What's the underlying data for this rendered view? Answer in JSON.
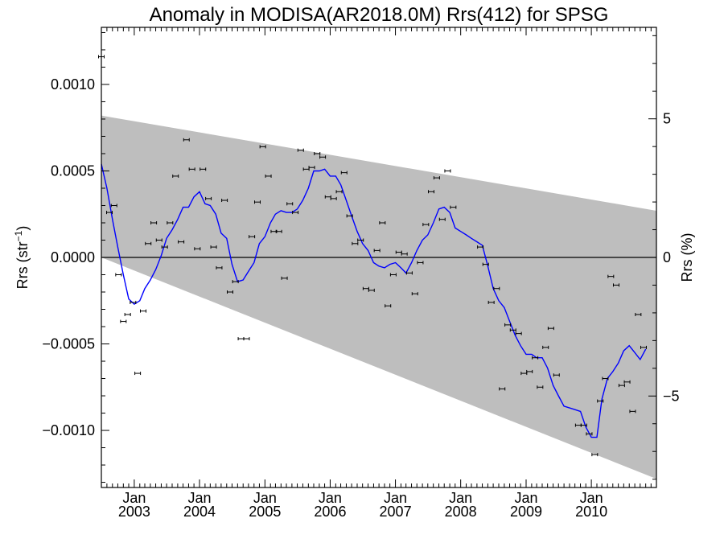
{
  "chart_data": {
    "type": "scatter",
    "title": "Anomaly in MODISA(AR2018.0M) Rrs(412) for SPSG",
    "ylabel_left": "Rrs (str⁻¹)",
    "ylabel_right": "Rrs (%)",
    "x_range": [
      "2002-07-01",
      "2010-12-31"
    ],
    "y_range_left": [
      -0.00133,
      0.00133
    ],
    "y_range_right": [
      -8.3,
      8.3
    ],
    "x_ticks": [
      {
        "date": "2003-01-01",
        "month": "Jan",
        "year": "2003"
      },
      {
        "date": "2004-01-01",
        "month": "Jan",
        "year": "2004"
      },
      {
        "date": "2005-01-01",
        "month": "Jan",
        "year": "2005"
      },
      {
        "date": "2006-01-01",
        "month": "Jan",
        "year": "2006"
      },
      {
        "date": "2007-01-01",
        "month": "Jan",
        "year": "2007"
      },
      {
        "date": "2008-01-01",
        "month": "Jan",
        "year": "2008"
      },
      {
        "date": "2009-01-01",
        "month": "Jan",
        "year": "2009"
      },
      {
        "date": "2010-01-01",
        "month": "Jan",
        "year": "2010"
      }
    ],
    "y_ticks_left": [
      {
        "value": 0.001,
        "label": "0.0010"
      },
      {
        "value": 0.0005,
        "label": "0.0005"
      },
      {
        "value": 0.0,
        "label": "0.0000"
      },
      {
        "value": -0.0005,
        "label": "−0.0005"
      },
      {
        "value": -0.001,
        "label": "−0.0010"
      }
    ],
    "y_ticks_right": [
      {
        "value": 5,
        "label": "5"
      },
      {
        "value": 0,
        "label": "0"
      },
      {
        "value": -5,
        "label": "−5"
      }
    ],
    "band": {
      "color": "#bebebe",
      "upper": [
        {
          "date": "2002-07-01",
          "y": 0.00082
        },
        {
          "date": "2010-12-31",
          "y": 0.00027
        }
      ],
      "lower": [
        {
          "date": "2002-07-01",
          "y": 0.0
        },
        {
          "date": "2010-12-31",
          "y": -0.00128
        }
      ]
    },
    "zero_line": true,
    "line_series": {
      "color": "#0000ff",
      "points": [
        [
          "2002-07-01",
          0.00054
        ],
        [
          "2002-08-01",
          0.0004
        ],
        [
          "2002-09-01",
          0.00022
        ],
        [
          "2002-10-01",
          6e-05
        ],
        [
          "2002-11-01",
          -0.0001
        ],
        [
          "2002-12-01",
          -0.00024
        ],
        [
          "2003-01-01",
          -0.00027
        ],
        [
          "2003-02-01",
          -0.00025
        ],
        [
          "2003-03-01",
          -0.00018
        ],
        [
          "2003-04-01",
          -0.00013
        ],
        [
          "2003-05-01",
          -7e-05
        ],
        [
          "2003-06-01",
          1e-05
        ],
        [
          "2003-07-01",
          0.00011
        ],
        [
          "2003-08-01",
          0.00016
        ],
        [
          "2003-09-01",
          0.00022
        ],
        [
          "2003-10-01",
          0.00029
        ],
        [
          "2003-11-01",
          0.00029
        ],
        [
          "2003-12-01",
          0.00035
        ],
        [
          "2004-01-01",
          0.00038
        ],
        [
          "2004-02-01",
          0.00031
        ],
        [
          "2004-03-01",
          0.0003
        ],
        [
          "2004-04-01",
          0.00025
        ],
        [
          "2004-05-01",
          0.00014
        ],
        [
          "2004-06-01",
          0.00011
        ],
        [
          "2004-07-01",
          -4e-05
        ],
        [
          "2004-08-01",
          -0.00014
        ],
        [
          "2004-09-01",
          -0.00013
        ],
        [
          "2004-10-01",
          -8e-05
        ],
        [
          "2004-11-01",
          -3e-05
        ],
        [
          "2004-12-01",
          8e-05
        ],
        [
          "2005-01-01",
          0.00012
        ],
        [
          "2005-02-01",
          0.0002
        ],
        [
          "2005-03-01",
          0.00025
        ],
        [
          "2005-04-01",
          0.00027
        ],
        [
          "2005-05-01",
          0.00026
        ],
        [
          "2005-06-01",
          0.00026
        ],
        [
          "2005-07-01",
          0.00028
        ],
        [
          "2005-08-01",
          0.00033
        ],
        [
          "2005-09-01",
          0.0004
        ],
        [
          "2005-10-01",
          0.0005
        ],
        [
          "2005-11-01",
          0.0005
        ],
        [
          "2005-12-01",
          0.00051
        ],
        [
          "2006-01-01",
          0.00047
        ],
        [
          "2006-02-01",
          0.00047
        ],
        [
          "2006-03-01",
          0.00042
        ],
        [
          "2006-04-01",
          0.00033
        ],
        [
          "2006-05-01",
          0.00024
        ],
        [
          "2006-06-01",
          0.00015
        ],
        [
          "2006-07-01",
          8e-05
        ],
        [
          "2006-08-01",
          4e-05
        ],
        [
          "2006-09-01",
          -3e-05
        ],
        [
          "2006-10-01",
          -5e-05
        ],
        [
          "2006-11-01",
          -6e-05
        ],
        [
          "2006-12-01",
          -4e-05
        ],
        [
          "2007-01-01",
          -3e-05
        ],
        [
          "2007-02-01",
          -6e-05
        ],
        [
          "2007-03-01",
          -9e-05
        ],
        [
          "2007-04-01",
          -3e-05
        ],
        [
          "2007-05-01",
          4e-05
        ],
        [
          "2007-06-01",
          0.0001
        ],
        [
          "2007-07-01",
          0.00013
        ],
        [
          "2007-08-01",
          0.0002
        ],
        [
          "2007-09-01",
          0.00028
        ],
        [
          "2007-10-01",
          0.00029
        ],
        [
          "2007-11-01",
          0.00026
        ],
        [
          "2007-12-01",
          0.00017
        ],
        [
          "2008-01-01",
          0.00015
        ],
        [
          "2008-02-01",
          0.00013
        ],
        [
          "2008-03-01",
          0.00011
        ],
        [
          "2008-04-01",
          9e-05
        ],
        [
          "2008-05-01",
          7e-05
        ],
        [
          "2008-06-01",
          -5e-05
        ],
        [
          "2008-07-01",
          -0.00018
        ],
        [
          "2008-08-01",
          -0.00025
        ],
        [
          "2008-09-01",
          -0.00029
        ],
        [
          "2008-10-01",
          -0.00037
        ],
        [
          "2008-11-01",
          -0.00045
        ],
        [
          "2008-12-01",
          -0.00051
        ],
        [
          "2009-01-01",
          -0.00056
        ],
        [
          "2009-02-01",
          -0.00056
        ],
        [
          "2009-03-01",
          -0.00058
        ],
        [
          "2009-04-01",
          -0.00058
        ],
        [
          "2009-05-01",
          -0.00064
        ],
        [
          "2009-06-01",
          -0.00074
        ],
        [
          "2009-07-01",
          -0.0008
        ],
        [
          "2009-08-01",
          -0.00086
        ],
        [
          "2009-09-01",
          -0.00087
        ],
        [
          "2009-10-01",
          -0.00088
        ],
        [
          "2009-11-01",
          -0.00089
        ],
        [
          "2009-12-01",
          -0.00098
        ],
        [
          "2010-01-01",
          -0.00104
        ],
        [
          "2010-02-01",
          -0.00104
        ],
        [
          "2010-03-01",
          -0.00082
        ],
        [
          "2010-04-01",
          -0.0007
        ],
        [
          "2010-05-01",
          -0.00066
        ],
        [
          "2010-06-01",
          -0.00061
        ],
        [
          "2010-07-01",
          -0.00054
        ],
        [
          "2010-08-01",
          -0.00051
        ],
        [
          "2010-09-01",
          -0.00055
        ],
        [
          "2010-10-01",
          -0.00059
        ],
        [
          "2010-11-01",
          -0.00053
        ]
      ]
    },
    "points": [
      [
        "2002-07-01",
        0.00116
      ],
      [
        "2002-08-15",
        0.00026
      ],
      [
        "2002-09-10",
        0.0003
      ],
      [
        "2002-10-05",
        -0.0001
      ],
      [
        "2002-11-01",
        -0.00037
      ],
      [
        "2002-11-25",
        -0.00033
      ],
      [
        "2002-12-25",
        -0.00026
      ],
      [
        "2003-01-20",
        -0.00067
      ],
      [
        "2003-02-20",
        -0.00031
      ],
      [
        "2003-03-20",
        8e-05
      ],
      [
        "2003-04-20",
        0.0002
      ],
      [
        "2003-05-20",
        0.0001
      ],
      [
        "2003-06-20",
        6e-05
      ],
      [
        "2003-07-20",
        0.0002
      ],
      [
        "2003-08-20",
        0.00047
      ],
      [
        "2003-09-20",
        9e-05
      ],
      [
        "2003-10-20",
        0.00068
      ],
      [
        "2003-11-20",
        0.00051
      ],
      [
        "2003-12-20",
        5e-05
      ],
      [
        "2004-01-20",
        0.00051
      ],
      [
        "2004-02-20",
        0.00034
      ],
      [
        "2004-03-20",
        6e-05
      ],
      [
        "2004-04-20",
        -6e-05
      ],
      [
        "2004-05-20",
        0.00033
      ],
      [
        "2004-06-20",
        -0.0002
      ],
      [
        "2004-07-20",
        -0.00014
      ],
      [
        "2004-08-20",
        -0.00047
      ],
      [
        "2004-09-20",
        -0.00047
      ],
      [
        "2004-10-20",
        0.00012
      ],
      [
        "2004-11-20",
        0.00032
      ],
      [
        "2004-12-20",
        0.00064
      ],
      [
        "2005-01-20",
        0.00047
      ],
      [
        "2005-02-20",
        0.00015
      ],
      [
        "2005-03-20",
        0.00015
      ],
      [
        "2005-04-20",
        -0.00012
      ],
      [
        "2005-05-20",
        0.00031
      ],
      [
        "2005-06-20",
        0.00026
      ],
      [
        "2005-07-20",
        0.00062
      ],
      [
        "2005-08-20",
        0.00051
      ],
      [
        "2005-09-20",
        0.00052
      ],
      [
        "2005-10-20",
        0.0006
      ],
      [
        "2005-11-20",
        0.00058
      ],
      [
        "2005-12-20",
        0.00035
      ],
      [
        "2006-01-20",
        0.00034
      ],
      [
        "2006-02-20",
        0.00038
      ],
      [
        "2006-03-20",
        0.00049
      ],
      [
        "2006-04-20",
        0.00024
      ],
      [
        "2006-05-20",
        8e-05
      ],
      [
        "2006-06-20",
        0.0001
      ],
      [
        "2006-07-20",
        -0.00018
      ],
      [
        "2006-08-20",
        -0.00019
      ],
      [
        "2006-09-20",
        4e-05
      ],
      [
        "2006-10-20",
        0.0002
      ],
      [
        "2006-11-20",
        -0.00028
      ],
      [
        "2006-12-20",
        -0.0001
      ],
      [
        "2007-01-20",
        3e-05
      ],
      [
        "2007-02-20",
        2e-05
      ],
      [
        "2007-03-20",
        -9e-05
      ],
      [
        "2007-04-20",
        -0.00021
      ],
      [
        "2007-05-20",
        -3e-05
      ],
      [
        "2007-06-20",
        0.00019
      ],
      [
        "2007-07-20",
        0.00038
      ],
      [
        "2007-08-20",
        0.00046
      ],
      [
        "2007-09-20",
        0.00022
      ],
      [
        "2007-10-20",
        0.0005
      ],
      [
        "2007-11-20",
        0.00029
      ],
      [
        "2008-04-20",
        6e-05
      ],
      [
        "2008-05-20",
        -4e-05
      ],
      [
        "2008-06-20",
        -0.00026
      ],
      [
        "2008-07-20",
        -0.00018
      ],
      [
        "2008-08-20",
        -0.00076
      ],
      [
        "2008-09-20",
        -0.00039
      ],
      [
        "2008-10-20",
        -0.00042
      ],
      [
        "2008-11-20",
        -0.00044
      ],
      [
        "2008-12-20",
        -0.00067
      ],
      [
        "2009-01-20",
        -0.00066
      ],
      [
        "2009-02-20",
        -0.00058
      ],
      [
        "2009-03-20",
        -0.00075
      ],
      [
        "2009-04-20",
        -0.00052
      ],
      [
        "2009-05-20",
        -0.00041
      ],
      [
        "2009-06-20",
        -0.00068
      ],
      [
        "2009-10-20",
        -0.00097
      ],
      [
        "2009-11-20",
        -0.00097
      ],
      [
        "2009-12-20",
        -0.00102
      ],
      [
        "2010-01-20",
        -0.00114
      ],
      [
        "2010-02-20",
        -0.00083
      ],
      [
        "2010-03-20",
        -0.0007
      ],
      [
        "2010-04-20",
        -0.00011
      ],
      [
        "2010-05-20",
        -0.00016
      ],
      [
        "2010-06-20",
        -0.00074
      ],
      [
        "2010-07-20",
        -0.00072
      ],
      [
        "2010-08-20",
        -0.00089
      ],
      [
        "2010-09-20",
        -0.00033
      ],
      [
        "2010-10-20",
        -0.00052
      ]
    ]
  }
}
